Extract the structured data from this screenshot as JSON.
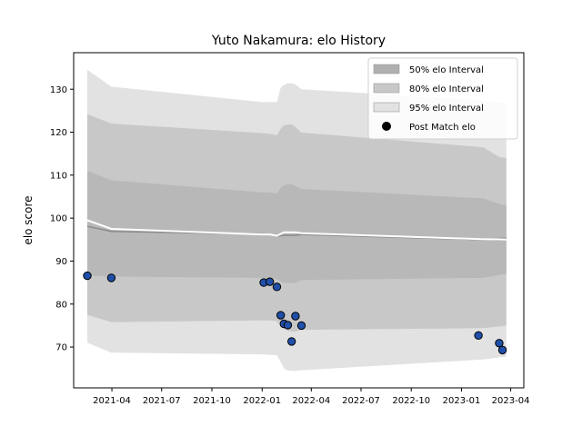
{
  "chart_data": {
    "type": "line",
    "title": "Yuto Nakamura: elo History",
    "xlabel": "",
    "ylabel": "elo score",
    "xlim": [
      "2021-01-21",
      "2023-04-25"
    ],
    "ylim": [
      60.5,
      138.5
    ],
    "x_ticks": [
      "2021-04-01",
      "2021-07-01",
      "2021-10-01",
      "2022-01-01",
      "2022-04-01",
      "2022-07-01",
      "2022-10-01",
      "2023-01-01",
      "2023-04-01"
    ],
    "x_tick_labels": [
      "2021-04",
      "2021-07",
      "2021-10",
      "2022-01",
      "2022-04",
      "2022-07",
      "2022-10",
      "2023-01",
      "2023-04"
    ],
    "y_ticks": [
      70,
      80,
      90,
      100,
      110,
      120,
      130
    ],
    "grid": false,
    "legend_position": "top-right",
    "legend": [
      {
        "label": "50% elo Interval",
        "color": "#b0b0b0",
        "kind": "patch"
      },
      {
        "label": "80% elo Interval",
        "color": "#c8c8c8",
        "kind": "patch"
      },
      {
        "label": "95% elo Interval",
        "color": "#e2e2e2",
        "kind": "patch"
      },
      {
        "label": "Post Match elo",
        "color": "#000000",
        "kind": "marker"
      }
    ],
    "band_x": [
      "2021-02-15",
      "2021-03-31",
      "2022-01-01",
      "2022-01-15",
      "2022-01-28",
      "2022-02-04",
      "2022-02-10",
      "2022-02-17",
      "2022-02-24",
      "2022-03-03",
      "2022-03-14",
      "2023-02-10",
      "2023-03-11",
      "2023-03-24"
    ],
    "interval_95": {
      "lower": [
        71,
        68.7,
        68.3,
        68.2,
        68.1,
        66.5,
        65,
        64.5,
        64.5,
        64.4,
        64.6,
        67.1,
        67.6,
        67.8
      ],
      "upper": [
        134.5,
        130.6,
        127,
        127,
        127,
        130.4,
        131,
        131.4,
        131.4,
        131.1,
        130,
        127.4,
        126.9,
        126.8
      ]
    },
    "interval_80": {
      "lower": [
        77.5,
        75.8,
        76.2,
        76.2,
        76,
        74.8,
        74.2,
        73.8,
        73.6,
        73.6,
        74,
        74.4,
        74.8,
        75
      ]
    },
    "interval_80_upper": [
      124.2,
      122,
      119.8,
      119.6,
      119.3,
      120.8,
      121.6,
      121.8,
      121.8,
      121.2,
      119.9,
      116.5,
      114.2,
      114
    ],
    "interval_50": {
      "lower": [
        86.6,
        86.4,
        86.1,
        86,
        85.8,
        85.2,
        85,
        84.9,
        84.9,
        85,
        85.6,
        86.1,
        86.8,
        87
      ],
      "upper": [
        111,
        108.8,
        106,
        106,
        105.7,
        107,
        107.6,
        107.9,
        107.9,
        107.5,
        106.8,
        104.6,
        103.3,
        103
      ]
    },
    "series": [
      {
        "kind": "mean",
        "color": "#8c8c8c",
        "x": [
          "2021-02-15",
          "2021-03-31",
          "2022-01-01",
          "2022-01-15",
          "2022-01-28",
          "2022-02-10",
          "2022-03-03",
          "2022-03-14",
          "2023-02-10",
          "2023-03-11",
          "2023-03-24"
        ],
        "values": [
          98.1,
          96.9,
          96.3,
          96.2,
          95.8,
          96,
          96,
          96.2,
          95,
          95.3,
          95.3
        ]
      },
      {
        "kind": "median",
        "color": "#ffffff",
        "x": [
          "2021-02-15",
          "2021-03-31",
          "2022-01-01",
          "2022-01-15",
          "2022-01-28",
          "2022-02-10",
          "2022-03-03",
          "2022-03-14",
          "2023-02-10",
          "2023-03-11",
          "2023-03-24"
        ],
        "values": [
          99.5,
          97.5,
          96.2,
          96.2,
          95.9,
          96.7,
          96.7,
          96.5,
          95.1,
          95.1,
          95
        ]
      },
      {
        "kind": "points",
        "name": "Post Match elo",
        "color": "#1f4fa8",
        "x": [
          "2021-02-15",
          "2021-03-31",
          "2022-01-04",
          "2022-01-15",
          "2022-01-28",
          "2022-02-04",
          "2022-02-10",
          "2022-02-17",
          "2022-02-24",
          "2022-03-03",
          "2022-03-14",
          "2023-02-01",
          "2023-03-11",
          "2023-03-17"
        ],
        "values": [
          86.6,
          86.1,
          85,
          85.2,
          84,
          77.4,
          75.4,
          75.1,
          71.3,
          77.2,
          75,
          72.7,
          70.9,
          69.3
        ]
      }
    ]
  }
}
